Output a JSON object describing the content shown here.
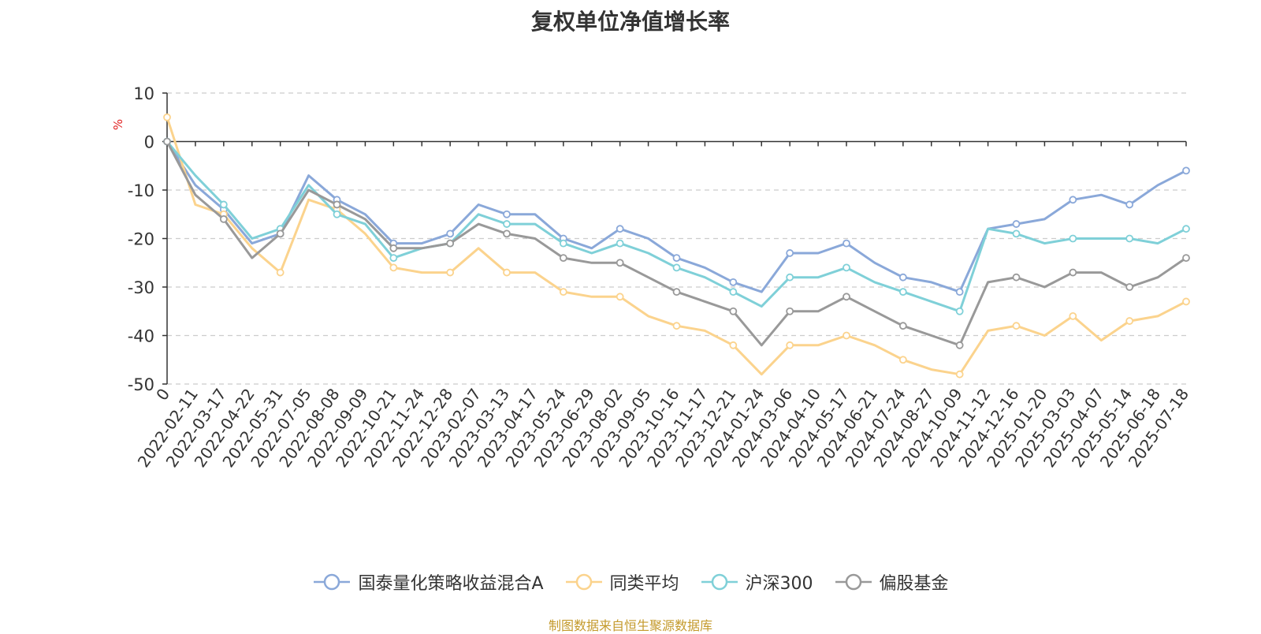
{
  "chart_data": {
    "type": "line",
    "title": "复权单位净值增长率",
    "ylabel": "%",
    "ylim": [
      -50,
      10
    ],
    "yticks": [
      10,
      0,
      -10,
      -20,
      -30,
      -40,
      -50
    ],
    "grid": true,
    "legend_position": "bottom",
    "x_labels": [
      "0",
      "2022-02-11",
      "2022-03-17",
      "2022-04-22",
      "2022-05-31",
      "2022-07-05",
      "2022-08-08",
      "2022-09-09",
      "2022-10-21",
      "2022-11-24",
      "2022-12-28",
      "2023-02-07",
      "2023-03-13",
      "2023-04-17",
      "2023-05-24",
      "2023-06-29",
      "2023-08-02",
      "2023-09-05",
      "2023-10-16",
      "2023-11-17",
      "2023-12-21",
      "2024-01-24",
      "2024-03-06",
      "2024-04-10",
      "2024-05-17",
      "2024-06-21",
      "2024-07-24",
      "2024-08-27",
      "2024-10-09",
      "2024-11-12",
      "2024-12-16",
      "2025-01-20",
      "2025-03-03",
      "2025-04-07",
      "2025-05-14",
      "2025-06-18",
      "2025-07-18"
    ],
    "series": [
      {
        "name": "国泰量化策略收益混合A",
        "color": "#8aa8d9",
        "values": [
          0,
          -9,
          -14,
          -21,
          -19,
          -7,
          -12,
          -15,
          -21,
          -21,
          -19,
          -13,
          -15,
          -15,
          -20,
          -22,
          -18,
          -20,
          -24,
          -26,
          -29,
          -31,
          -23,
          -23,
          -21,
          -25,
          -28,
          -29,
          -31,
          -18,
          -17,
          -16,
          -12,
          -11,
          -13,
          -9,
          -6
        ]
      },
      {
        "name": "同类平均",
        "color": "#fbd38d",
        "values": [
          5,
          -13,
          -15,
          -22,
          -27,
          -12,
          -14,
          -19,
          -26,
          -27,
          -27,
          -22,
          -27,
          -27,
          -31,
          -32,
          -32,
          -36,
          -38,
          -39,
          -42,
          -48,
          -42,
          -42,
          -40,
          -42,
          -45,
          -47,
          -48,
          -39,
          -38,
          -40,
          -36,
          -41,
          -37,
          -36,
          -33
        ]
      },
      {
        "name": "沪深300",
        "color": "#7fd0d8",
        "values": [
          0,
          -7,
          -13,
          -20,
          -18,
          -9,
          -15,
          -17,
          -24,
          -22,
          -21,
          -15,
          -17,
          -17,
          -21,
          -23,
          -21,
          -23,
          -26,
          -28,
          -31,
          -34,
          -28,
          -28,
          -26,
          -29,
          -31,
          -33,
          -35,
          -18,
          -19,
          -21,
          -20,
          -20,
          -20,
          -21,
          -18
        ]
      },
      {
        "name": "偏股基金",
        "color": "#999999",
        "values": [
          0,
          -11,
          -16,
          -24,
          -19,
          -10,
          -13,
          -16,
          -22,
          -22,
          -21,
          -17,
          -19,
          -20,
          -24,
          -25,
          -25,
          -28,
          -31,
          -33,
          -35,
          -42,
          -35,
          -35,
          -32,
          -35,
          -38,
          -40,
          -42,
          -29,
          -28,
          -30,
          -27,
          -27,
          -30,
          -28,
          -24
        ]
      }
    ]
  },
  "source": "制图数据来自恒生聚源数据库"
}
